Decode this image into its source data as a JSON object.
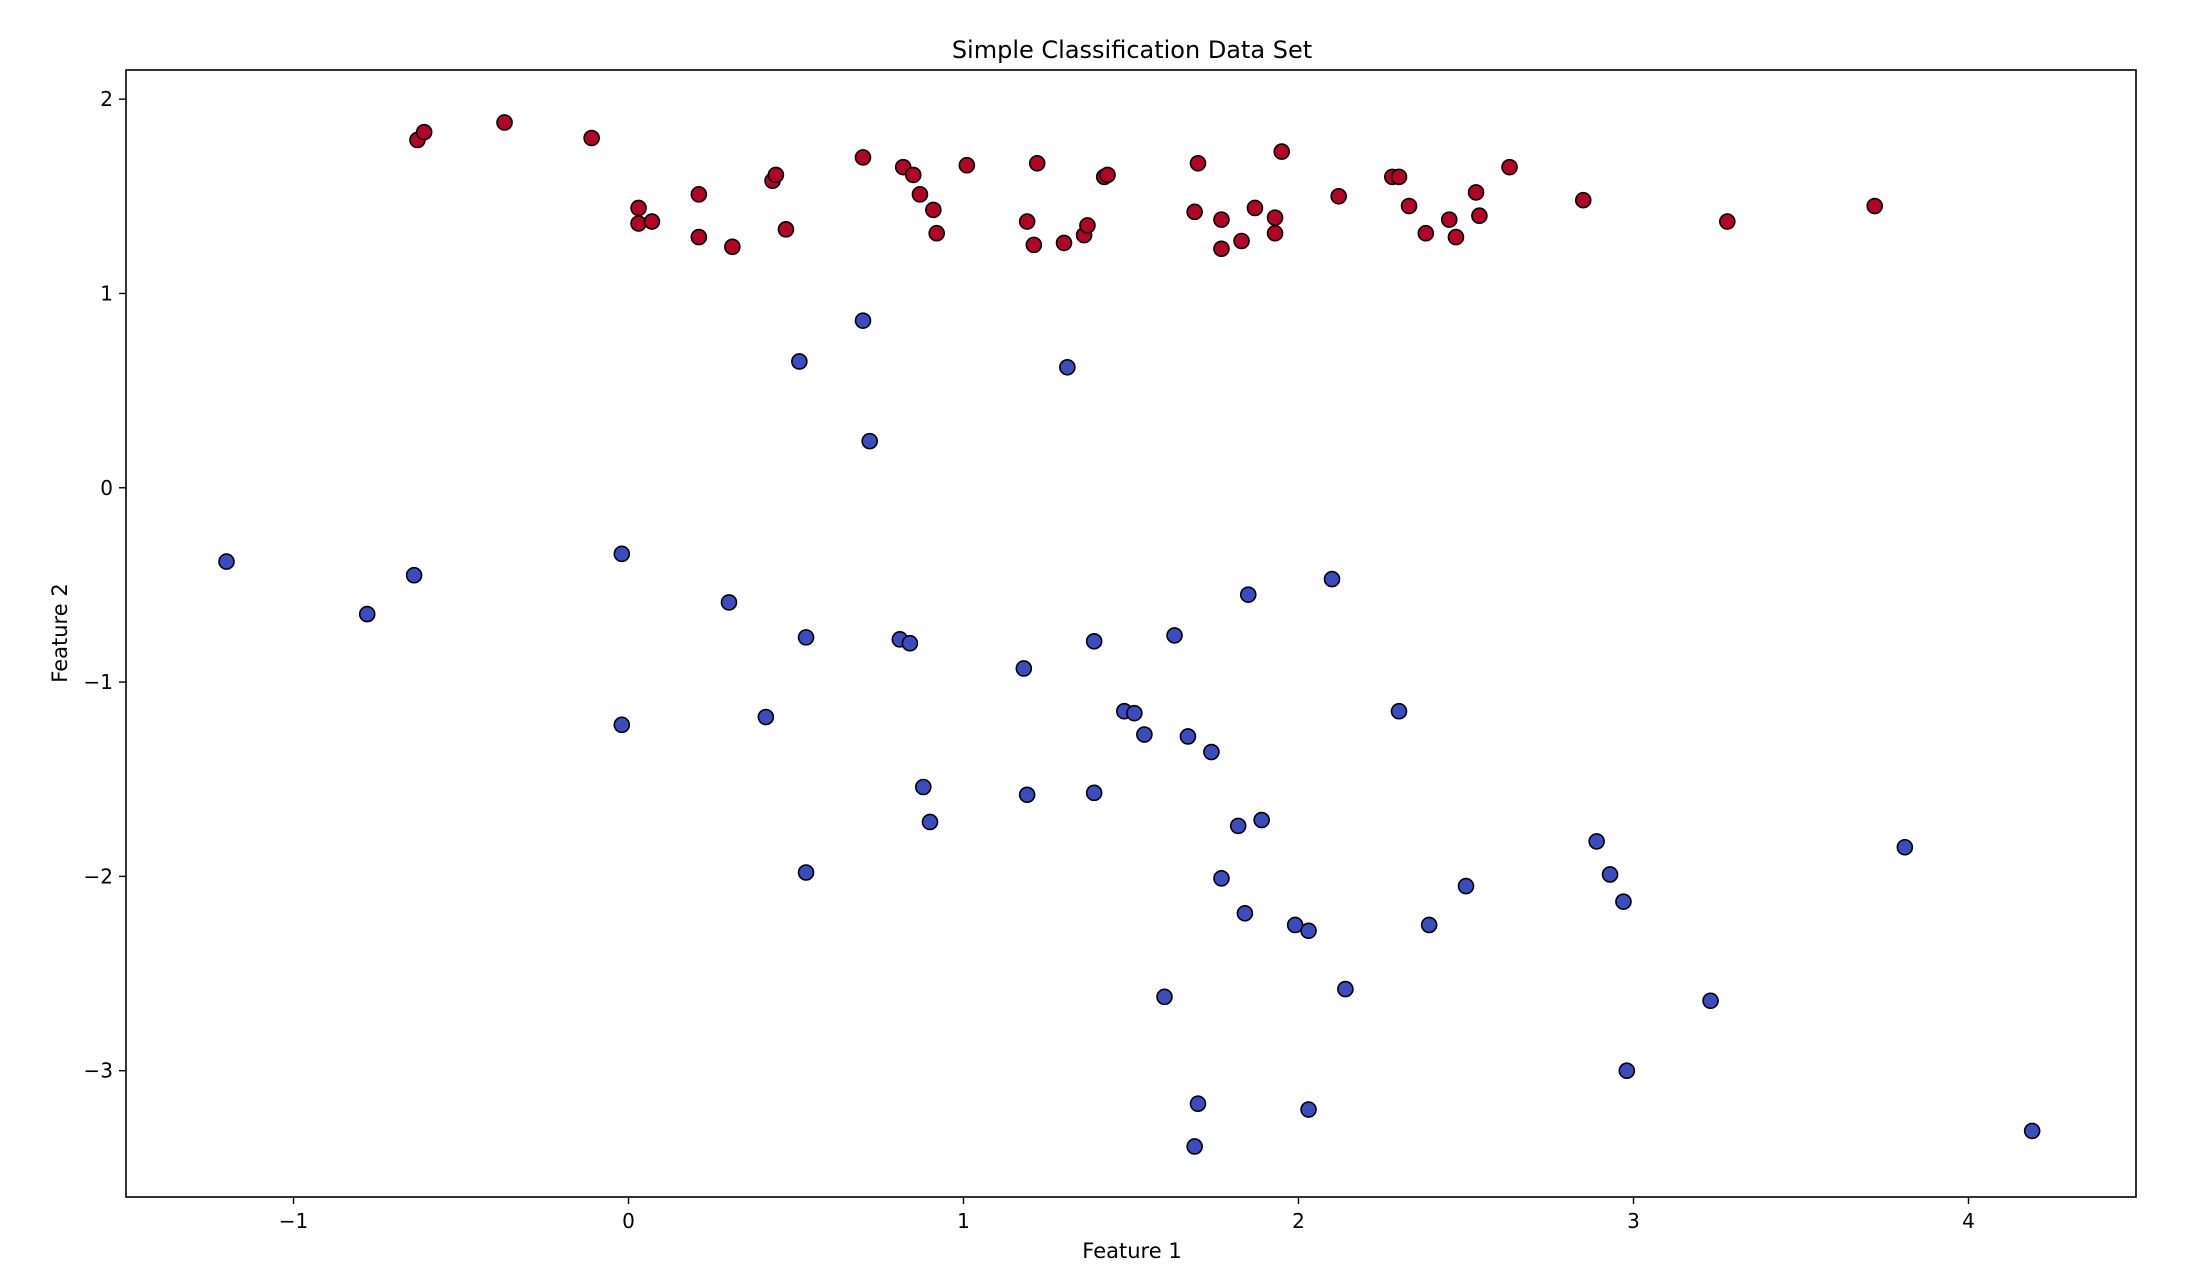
{
  "chart_data": {
    "type": "scatter",
    "title": "Simple Classification Data Set",
    "xlabel": "Feature 1",
    "ylabel": "Feature 2",
    "xlim": [
      -1.5,
      4.5
    ],
    "ylim": [
      -3.65,
      2.15
    ],
    "xticks": [
      -1,
      0,
      1,
      2,
      3,
      4
    ],
    "yticks": [
      -3,
      -2,
      -1,
      0,
      1,
      2
    ],
    "xtick_labels": [
      "−1",
      "0",
      "1",
      "2",
      "3",
      "4"
    ],
    "ytick_labels": [
      "−3",
      "−2",
      "−1",
      "0",
      "1",
      "2"
    ],
    "grid": false,
    "legend": false,
    "colors": {
      "class_red": "#b40426",
      "class_blue": "#3b4cc0",
      "edge": "#000000"
    },
    "series": [
      {
        "color": "#b40426",
        "points": [
          [
            -0.63,
            1.79
          ],
          [
            -0.61,
            1.83
          ],
          [
            -0.37,
            1.88
          ],
          [
            -0.11,
            1.8
          ],
          [
            0.03,
            1.44
          ],
          [
            0.03,
            1.36
          ],
          [
            0.07,
            1.37
          ],
          [
            0.21,
            1.51
          ],
          [
            0.21,
            1.29
          ],
          [
            0.31,
            1.24
          ],
          [
            0.43,
            1.58
          ],
          [
            0.44,
            1.61
          ],
          [
            0.47,
            1.33
          ],
          [
            0.7,
            1.7
          ],
          [
            0.82,
            1.65
          ],
          [
            0.85,
            1.61
          ],
          [
            0.87,
            1.51
          ],
          [
            0.91,
            1.43
          ],
          [
            0.92,
            1.31
          ],
          [
            1.01,
            1.66
          ],
          [
            1.19,
            1.37
          ],
          [
            1.21,
            1.25
          ],
          [
            1.22,
            1.67
          ],
          [
            1.3,
            1.26
          ],
          [
            1.36,
            1.3
          ],
          [
            1.37,
            1.35
          ],
          [
            1.42,
            1.6
          ],
          [
            1.43,
            1.61
          ],
          [
            1.69,
            1.42
          ],
          [
            1.7,
            1.67
          ],
          [
            1.77,
            1.38
          ],
          [
            1.77,
            1.23
          ],
          [
            1.83,
            1.27
          ],
          [
            1.87,
            1.44
          ],
          [
            1.93,
            1.39
          ],
          [
            1.93,
            1.31
          ],
          [
            1.95,
            1.73
          ],
          [
            2.12,
            1.5
          ],
          [
            2.28,
            1.6
          ],
          [
            2.3,
            1.6
          ],
          [
            2.33,
            1.45
          ],
          [
            2.38,
            1.31
          ],
          [
            2.45,
            1.38
          ],
          [
            2.47,
            1.29
          ],
          [
            2.53,
            1.52
          ],
          [
            2.54,
            1.4
          ],
          [
            2.63,
            1.65
          ],
          [
            2.85,
            1.48
          ],
          [
            3.28,
            1.37
          ],
          [
            3.72,
            1.45
          ]
        ]
      },
      {
        "color": "#3b4cc0",
        "points": [
          [
            -1.2,
            -0.38
          ],
          [
            -0.78,
            -0.65
          ],
          [
            -0.64,
            -0.45
          ],
          [
            -0.02,
            -0.34
          ],
          [
            -0.02,
            -1.22
          ],
          [
            0.3,
            -0.59
          ],
          [
            0.41,
            -1.18
          ],
          [
            0.51,
            0.65
          ],
          [
            0.53,
            -0.77
          ],
          [
            0.53,
            -1.98
          ],
          [
            0.7,
            0.86
          ],
          [
            0.72,
            0.24
          ],
          [
            0.81,
            -0.78
          ],
          [
            0.84,
            -0.8
          ],
          [
            0.88,
            -1.54
          ],
          [
            0.9,
            -1.72
          ],
          [
            1.18,
            -0.93
          ],
          [
            1.19,
            -1.58
          ],
          [
            1.31,
            0.62
          ],
          [
            1.39,
            -0.79
          ],
          [
            1.39,
            -1.57
          ],
          [
            1.48,
            -1.15
          ],
          [
            1.51,
            -1.16
          ],
          [
            1.54,
            -1.27
          ],
          [
            1.6,
            -2.62
          ],
          [
            1.63,
            -0.76
          ],
          [
            1.67,
            -1.28
          ],
          [
            1.69,
            -3.39
          ],
          [
            1.7,
            -3.17
          ],
          [
            1.74,
            -1.36
          ],
          [
            1.77,
            -2.01
          ],
          [
            1.82,
            -1.74
          ],
          [
            1.84,
            -2.19
          ],
          [
            1.85,
            -0.55
          ],
          [
            1.89,
            -1.71
          ],
          [
            1.99,
            -2.25
          ],
          [
            2.03,
            -2.28
          ],
          [
            2.03,
            -3.2
          ],
          [
            2.1,
            -0.47
          ],
          [
            2.14,
            -2.58
          ],
          [
            2.3,
            -1.15
          ],
          [
            2.39,
            -2.25
          ],
          [
            2.5,
            -2.05
          ],
          [
            2.89,
            -1.82
          ],
          [
            2.93,
            -1.99
          ],
          [
            2.97,
            -2.13
          ],
          [
            2.98,
            -3.0
          ],
          [
            3.23,
            -2.64
          ],
          [
            3.81,
            -1.85
          ],
          [
            4.19,
            -3.31
          ]
        ]
      }
    ]
  }
}
